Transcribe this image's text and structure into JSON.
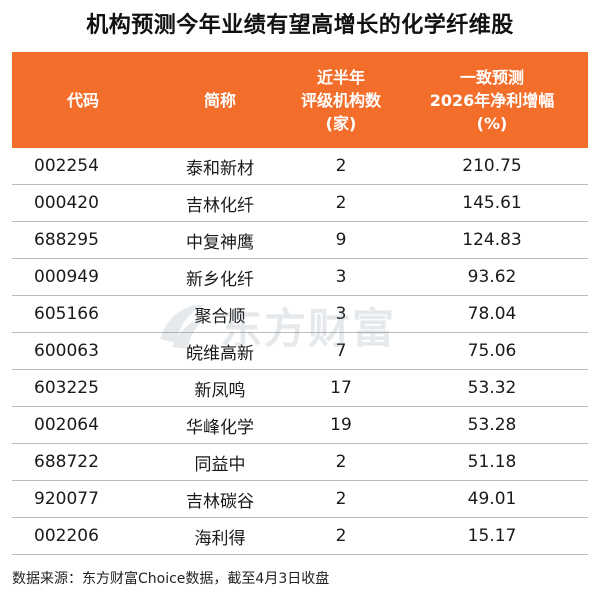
{
  "title": "机构预测今年业绩有望高增长的化学纤维股",
  "header": {
    "code": "代码",
    "name": "简称",
    "count": "近半年\n评级机构数\n(家)",
    "growth": "一致预测\n2026年净利增幅\n(%)"
  },
  "rows": [
    {
      "code": "002254",
      "name": "泰和新材",
      "count": "2",
      "growth": "210.75"
    },
    {
      "code": "000420",
      "name": "吉林化纤",
      "count": "2",
      "growth": "145.61"
    },
    {
      "code": "688295",
      "name": "中复神鹰",
      "count": "9",
      "growth": "124.83"
    },
    {
      "code": "000949",
      "name": "新乡化纤",
      "count": "3",
      "growth": "93.62"
    },
    {
      "code": "605166",
      "name": "聚合顺",
      "count": "3",
      "growth": "78.04"
    },
    {
      "code": "600063",
      "name": "皖维高新",
      "count": "7",
      "growth": "75.06"
    },
    {
      "code": "603225",
      "name": "新凤鸣",
      "count": "17",
      "growth": "53.32"
    },
    {
      "code": "002064",
      "name": "华峰化学",
      "count": "19",
      "growth": "53.28"
    },
    {
      "code": "688722",
      "name": "同益中",
      "count": "2",
      "growth": "51.18"
    },
    {
      "code": "920077",
      "name": "吉林碳谷",
      "count": "2",
      "growth": "49.01"
    },
    {
      "code": "002206",
      "name": "海利得",
      "count": "2",
      "growth": "15.17"
    }
  ],
  "watermark": "东方财富",
  "footer": "数据来源：东方财富Choice数据，截至4月3日收盘",
  "colors": {
    "header_bg": "#f36e2b",
    "header_text": "#ffffff",
    "row_divider": "#bdbdbd"
  }
}
